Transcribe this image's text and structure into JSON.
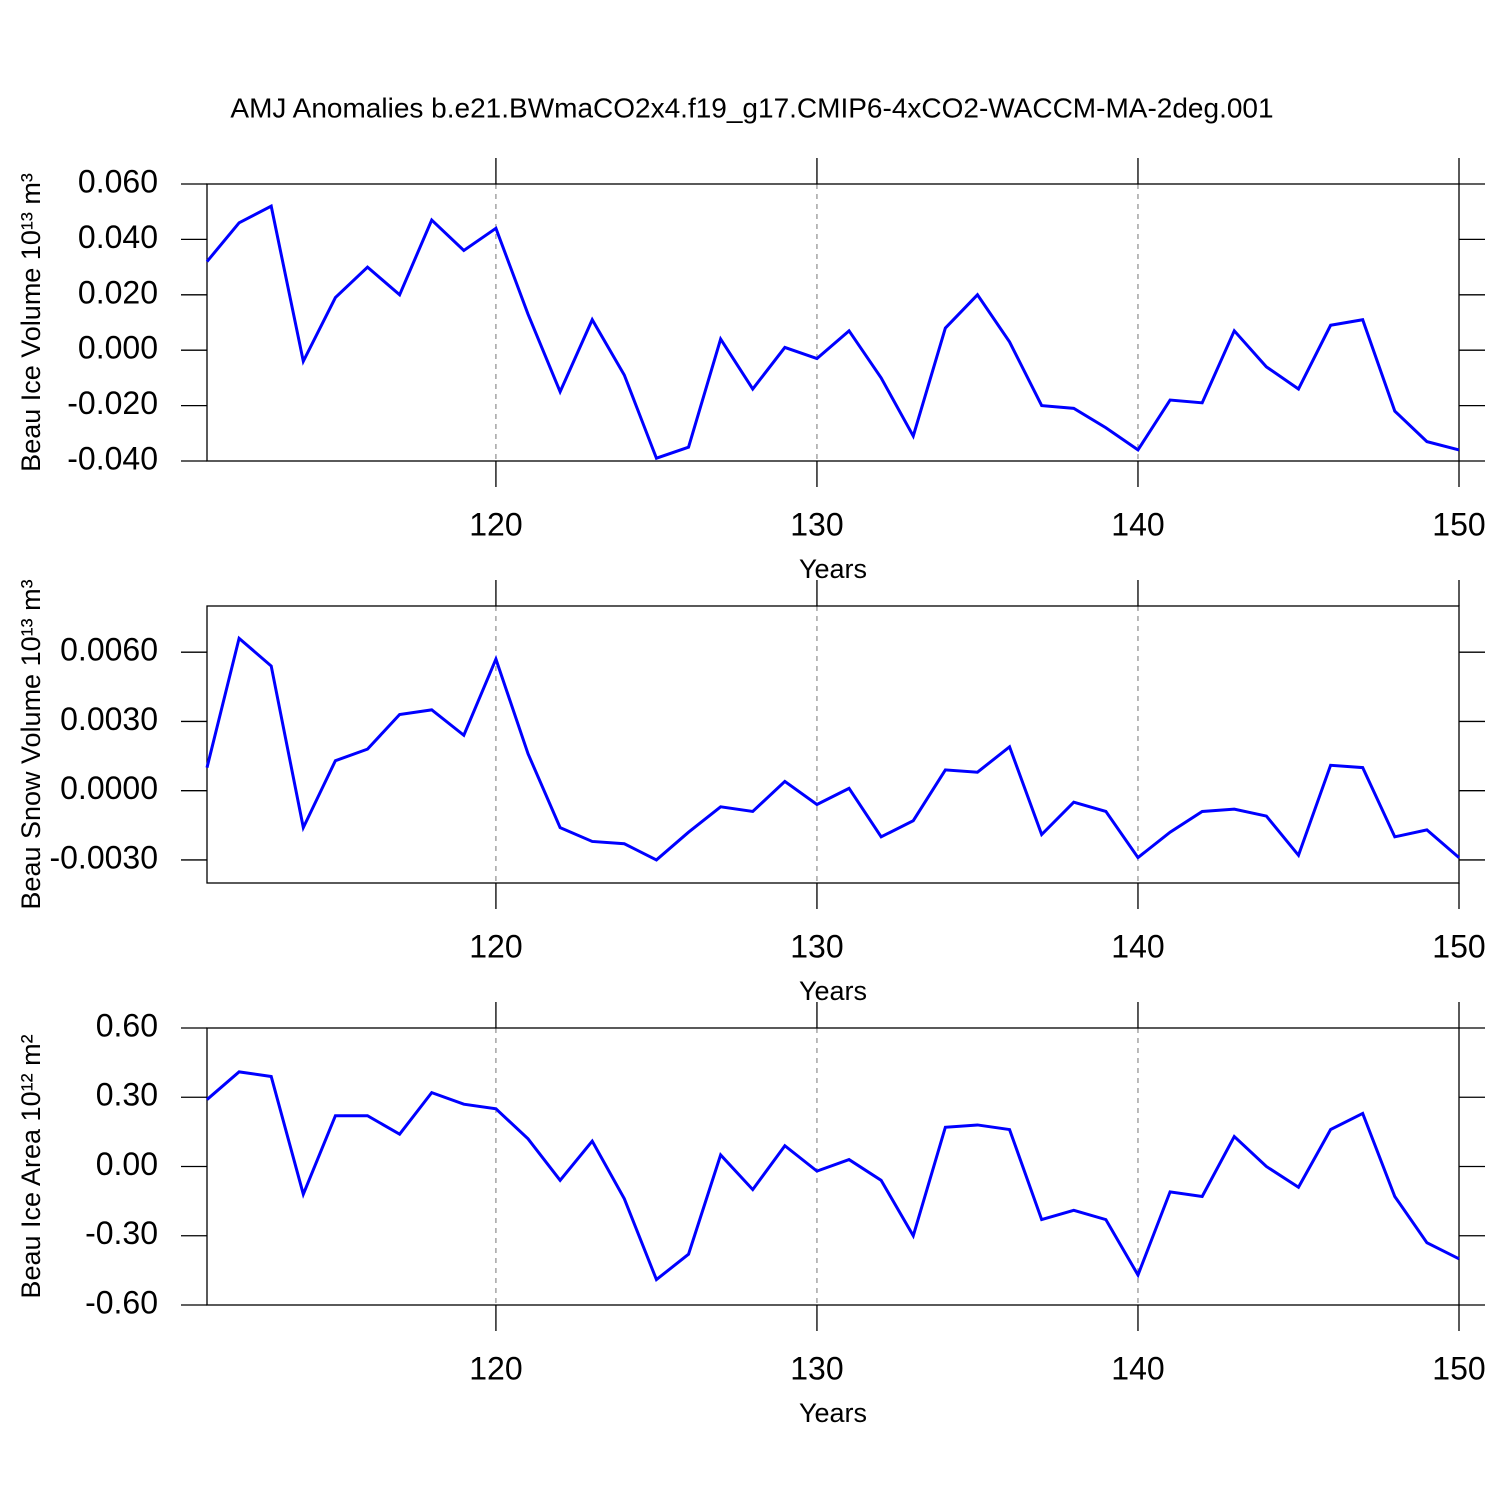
{
  "chart_data": [
    {
      "type": "line",
      "title": "AMJ Anomalies b.e21.BWmaCO2x4.f19_g17.CMIP6-4xCO2-WACCM-MA-2deg.001",
      "xlabel": "Years",
      "ylabel": "Beau Ice Volume 10¹³ m³",
      "x": [
        111,
        112,
        113,
        114,
        115,
        116,
        117,
        118,
        119,
        120,
        121,
        122,
        123,
        124,
        125,
        126,
        127,
        128,
        129,
        130,
        131,
        132,
        133,
        134,
        135,
        136,
        137,
        138,
        139,
        140,
        141,
        142,
        143,
        144,
        145,
        146,
        147,
        148,
        149,
        150
      ],
      "series": [
        {
          "color": "#0000ff",
          "values": [
            0.032,
            0.046,
            0.052,
            -0.004,
            0.019,
            0.03,
            0.02,
            0.047,
            0.036,
            0.044,
            0.013,
            -0.015,
            0.011,
            -0.009,
            -0.039,
            -0.035,
            0.004,
            -0.014,
            0.001,
            -0.003,
            0.007,
            -0.01,
            -0.031,
            0.008,
            0.02,
            0.003,
            -0.02,
            -0.021,
            -0.028,
            -0.036,
            -0.018,
            -0.019,
            0.007,
            -0.006,
            -0.014,
            0.009,
            0.011,
            -0.022,
            -0.033,
            -0.036
          ]
        }
      ],
      "xlim": [
        111,
        150
      ],
      "xticks": [
        120,
        130,
        140,
        150
      ],
      "ylim": [
        -0.04,
        0.06
      ],
      "yticks": [
        {
          "value": -0.04,
          "label": "-0.040"
        },
        {
          "value": -0.02,
          "label": "-0.020"
        },
        {
          "value": 0,
          "label": "0.000"
        },
        {
          "value": 0.02,
          "label": "0.020"
        },
        {
          "value": 0.04,
          "label": "0.040"
        },
        {
          "value": 0.06,
          "label": "0.060"
        }
      ],
      "grid": true
    },
    {
      "type": "line",
      "xlabel": "Years",
      "ylabel": "Beau Snow Volume 10¹³ m³",
      "x": [
        111,
        112,
        113,
        114,
        115,
        116,
        117,
        118,
        119,
        120,
        121,
        122,
        123,
        124,
        125,
        126,
        127,
        128,
        129,
        130,
        131,
        132,
        133,
        134,
        135,
        136,
        137,
        138,
        139,
        140,
        141,
        142,
        143,
        144,
        145,
        146,
        147,
        148,
        149,
        150
      ],
      "series": [
        {
          "color": "#0000ff",
          "values": [
            0.001,
            0.0066,
            0.0054,
            -0.0016,
            0.0013,
            0.0018,
            0.0033,
            0.0035,
            0.0024,
            0.0057,
            0.0016,
            -0.0016,
            -0.0022,
            -0.0023,
            -0.003,
            -0.0018,
            -0.0007,
            -0.0009,
            0.0004,
            -0.0006,
            0.0001,
            -0.002,
            -0.0013,
            0.0009,
            0.0008,
            0.0019,
            -0.0019,
            -0.0005,
            -0.0009,
            -0.0029,
            -0.0018,
            -0.0009,
            -0.0008,
            -0.0011,
            -0.0028,
            0.0011,
            0.001,
            -0.002,
            -0.0017,
            -0.0029
          ]
        }
      ],
      "xlim": [
        111,
        150
      ],
      "xticks": [
        120,
        130,
        140,
        150
      ],
      "ylim": [
        -0.004,
        0.008
      ],
      "yticks": [
        {
          "value": -0.003,
          "label": "-0.0030"
        },
        {
          "value": 0,
          "label": "0.0000"
        },
        {
          "value": 0.003,
          "label": "0.0030"
        },
        {
          "value": 0.006,
          "label": "0.0060"
        }
      ],
      "grid": true
    },
    {
      "type": "line",
      "xlabel": "Years",
      "ylabel": "Beau Ice Area 10¹² m²",
      "x": [
        111,
        112,
        113,
        114,
        115,
        116,
        117,
        118,
        119,
        120,
        121,
        122,
        123,
        124,
        125,
        126,
        127,
        128,
        129,
        130,
        131,
        132,
        133,
        134,
        135,
        136,
        137,
        138,
        139,
        140,
        141,
        142,
        143,
        144,
        145,
        146,
        147,
        148,
        149,
        150
      ],
      "series": [
        {
          "color": "#0000ff",
          "values": [
            0.29,
            0.41,
            0.39,
            -0.12,
            0.22,
            0.22,
            0.14,
            0.32,
            0.27,
            0.25,
            0.12,
            -0.06,
            0.11,
            -0.14,
            -0.49,
            -0.38,
            0.05,
            -0.1,
            0.09,
            -0.02,
            0.03,
            -0.06,
            -0.3,
            0.17,
            0.18,
            0.16,
            -0.23,
            -0.19,
            -0.23,
            -0.47,
            -0.11,
            -0.13,
            0.13,
            0.0,
            -0.09,
            0.16,
            0.23,
            -0.13,
            -0.33,
            -0.4
          ]
        }
      ],
      "xlim": [
        111,
        150
      ],
      "xticks": [
        120,
        130,
        140,
        150
      ],
      "ylim": [
        -0.6,
        0.6
      ],
      "yticks": [
        {
          "value": -0.6,
          "label": "-0.60"
        },
        {
          "value": -0.3,
          "label": "-0.30"
        },
        {
          "value": 0,
          "label": "0.00"
        },
        {
          "value": 0.3,
          "label": "0.30"
        },
        {
          "value": 0.6,
          "label": "0.60"
        }
      ],
      "grid": true
    }
  ]
}
